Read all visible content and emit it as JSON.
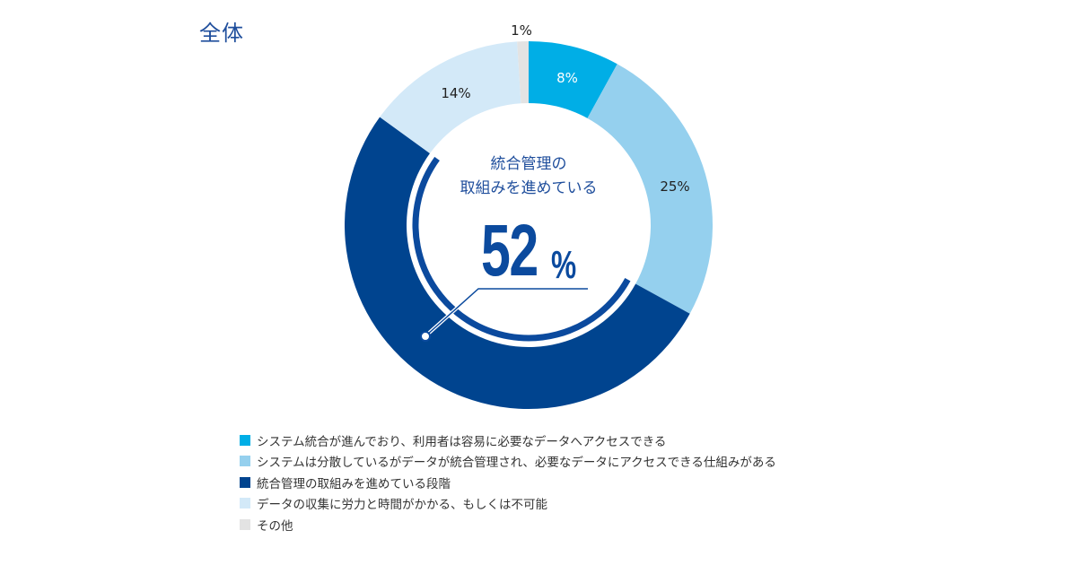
{
  "header": {
    "title": "全体"
  },
  "center": {
    "line1": "統合管理の",
    "line2": "取組みを進めている",
    "value": "52",
    "unit": "%"
  },
  "chart_data": {
    "type": "pie",
    "variant": "donut",
    "title": "全体",
    "start_angle_deg": 0,
    "direction": "clockwise",
    "categories": [
      "システム統合が進んでおり、利用者は容易に必要なデータへアクセスできる",
      "システムは分散しているがデータが統合管理され、必要なデータにアクセスできる仕組みがある",
      "統合管理の取組みを進めている段階",
      "データの収集に労力と時間がかかる、もしくは不可能",
      "その他"
    ],
    "values": [
      8,
      25,
      52,
      14,
      1
    ],
    "labels": [
      "8%",
      "25%",
      "52%",
      "14%",
      "1%"
    ],
    "colors": [
      "#00AEE6",
      "#95D0EE",
      "#00448F",
      "#D3E9F8",
      "#E3E3E3"
    ],
    "label_colors": [
      "#ffffff",
      "#222222",
      "#ffffff",
      "#222222",
      "#222222"
    ],
    "highlight": {
      "category_index": 2,
      "text": "統合管理の取組みを進めている",
      "value": "52%"
    },
    "legend_position": "bottom-left"
  },
  "legend": {
    "items": [
      {
        "label": "システム統合が進んでおり、利用者は容易に必要なデータへアクセスできる",
        "color": "#00AEE6"
      },
      {
        "label": "システムは分散しているがデータが統合管理され、必要なデータにアクセスできる仕組みがある",
        "color": "#95D0EE"
      },
      {
        "label": "統合管理の取組みを進めている段階",
        "color": "#00448F"
      },
      {
        "label": "データの収集に労力と時間がかかる、もしくは不可能",
        "color": "#D3E9F8"
      },
      {
        "label": "その他",
        "color": "#E3E3E3"
      }
    ]
  },
  "slice_labels": {
    "s0": "8%",
    "s1": "25%",
    "s3": "14%",
    "s4": "1%"
  }
}
